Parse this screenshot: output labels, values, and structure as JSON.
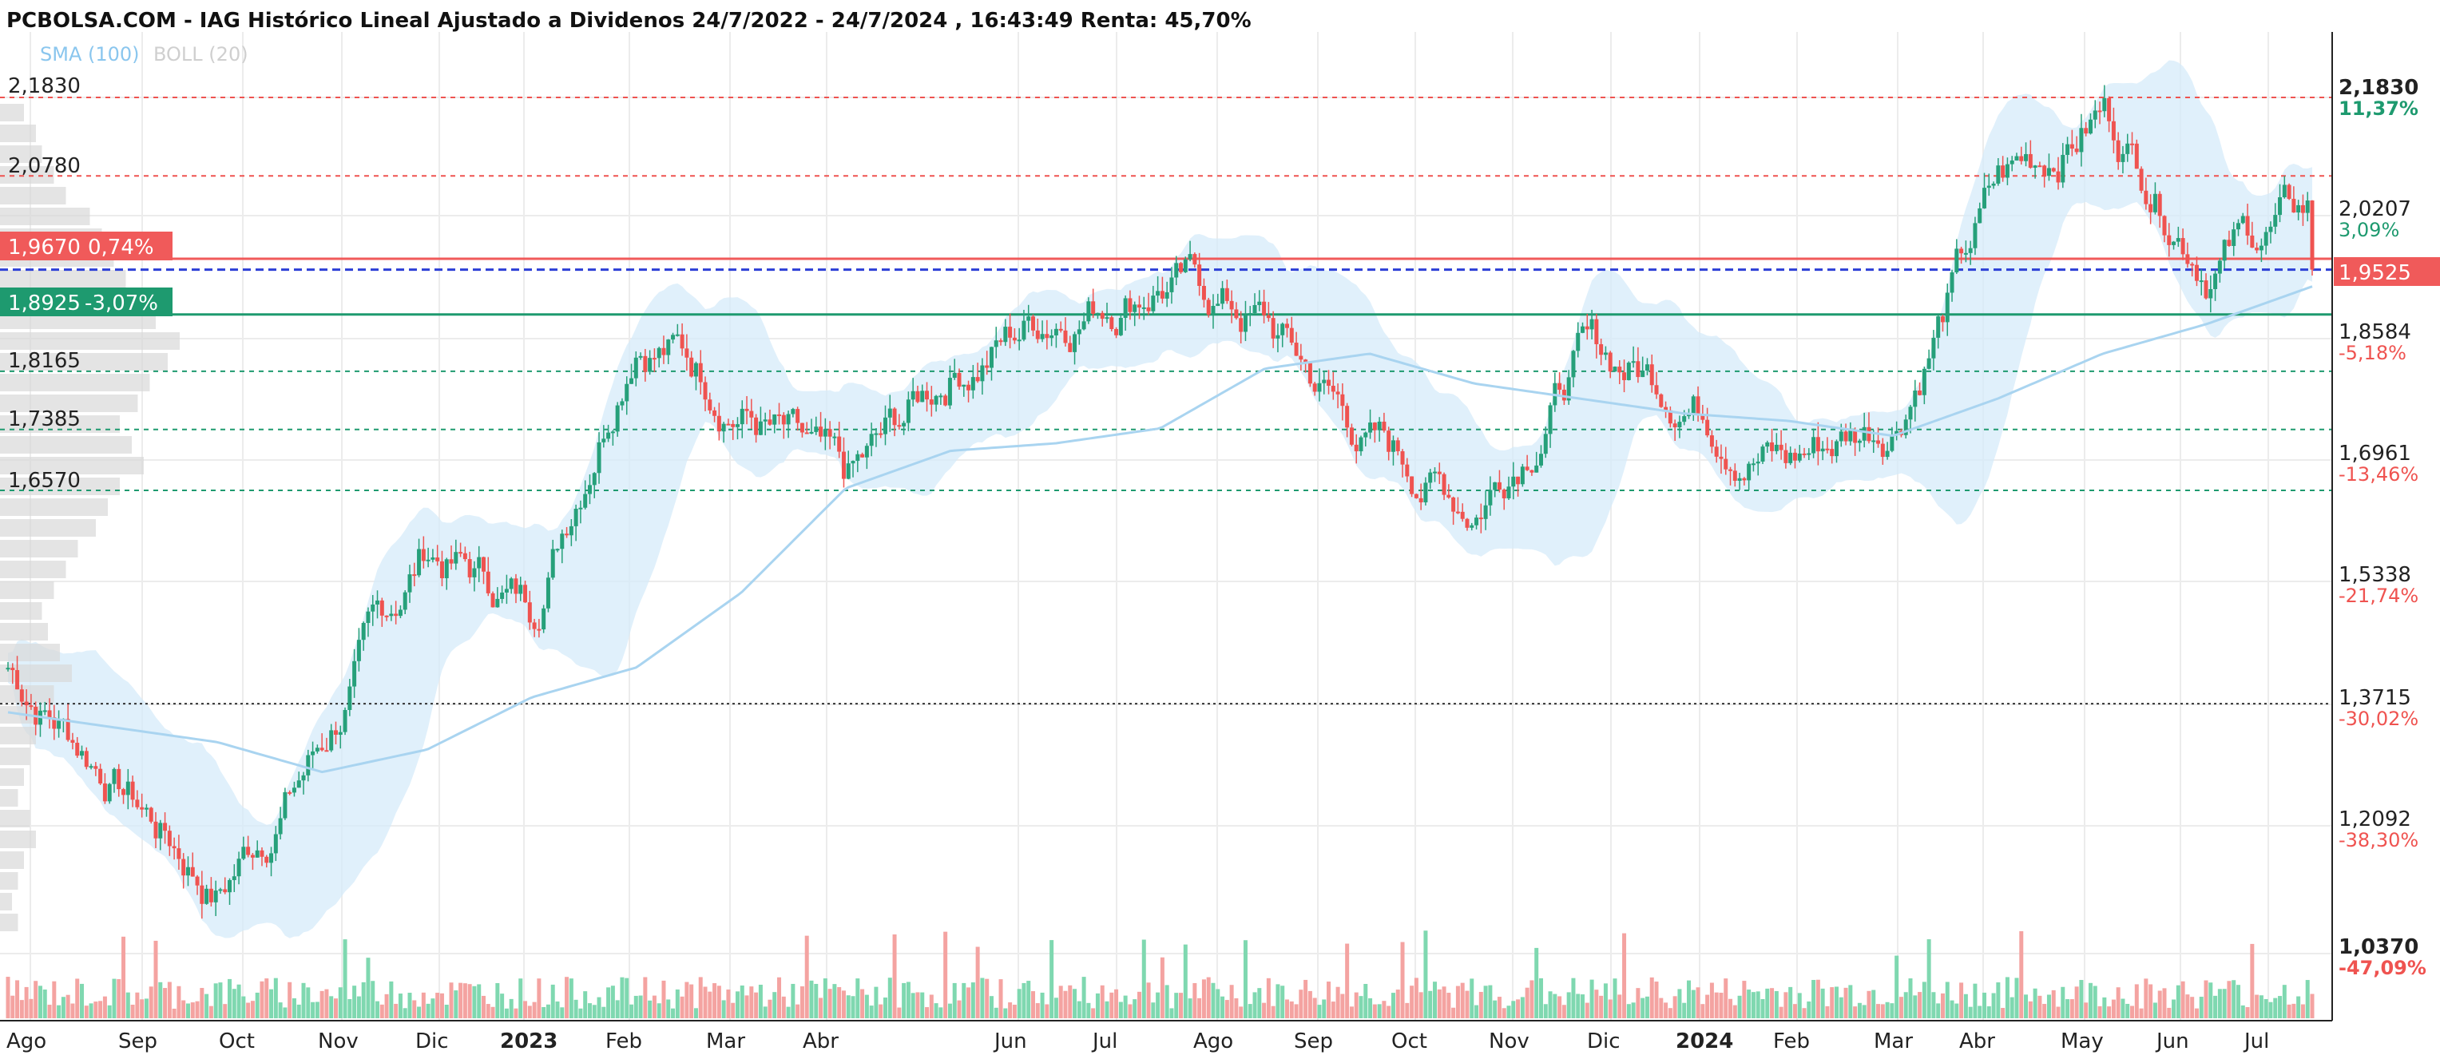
{
  "header": {
    "title": "PCBOLSA.COM - IAG Histórico Lineal Ajustado a Dividenos 24/7/2022 - 24/7/2024 , 16:43:49 Renta: 45,70%",
    "indicator_sma": "SMA (100)",
    "indicator_boll": "BOLL (20)"
  },
  "colors": {
    "up": "#26a07a",
    "down": "#ef5350",
    "sma": "#a9d4f0",
    "band": "#d6ebfa",
    "current": "#f05a5a",
    "support": "#1e9a6f",
    "dashed_blue": "#2c3fd6"
  },
  "left_labels": [
    {
      "price": "2,1830",
      "pct": ""
    },
    {
      "price": "2,0780",
      "pct": ""
    },
    {
      "price": "1,9670",
      "pct": "0,74%"
    },
    {
      "price": "1,8925",
      "pct": "-3,07%"
    },
    {
      "price": "1,8165",
      "pct": ""
    },
    {
      "price": "1,7385",
      "pct": ""
    },
    {
      "price": "1,6570",
      "pct": ""
    }
  ],
  "right_axis": [
    {
      "price": "2,1830",
      "pct": "11,37%"
    },
    {
      "price": "2,0207",
      "pct": "3,09%"
    },
    {
      "price": "1,9525",
      "pct": ""
    },
    {
      "price": "1,8584",
      "pct": "-5,18%"
    },
    {
      "price": "1,6961",
      "pct": "-13,46%"
    },
    {
      "price": "1,5338",
      "pct": "-21,74%"
    },
    {
      "price": "1,3715",
      "pct": "-30,02%"
    },
    {
      "price": "1,2092",
      "pct": "-38,30%"
    },
    {
      "price": "1,0370",
      "pct": "-47,09%"
    }
  ],
  "x_axis": [
    "Ago",
    "Sep",
    "Oct",
    "Nov",
    "Dic",
    "2023",
    "Feb",
    "Mar",
    "Abr",
    "Jun",
    "Jul",
    "Ago",
    "Sep",
    "Oct",
    "Nov",
    "Dic",
    "2024",
    "Feb",
    "Mar",
    "Abr",
    "May",
    "Jun",
    "Jul"
  ],
  "chart_data": {
    "type": "candlestick",
    "title": "PCBOLSA.COM - IAG Histórico Lineal Ajustado a Dividenos 24/7/2022 - 24/7/2024 , 16:43:49 Renta: 45,70%",
    "date_range": [
      "24/7/2022",
      "24/7/2024"
    ],
    "return": "45,70%",
    "last_price": 1.9525,
    "ylim": [
      1.037,
      2.183
    ],
    "horizontal_levels": [
      2.183,
      2.078,
      1.967,
      1.9525,
      1.8925,
      1.8165,
      1.7385,
      1.657,
      1.3715
    ],
    "close_series": {
      "x": [
        "Ago",
        "Sep",
        "Oct",
        "Nov",
        "Dic",
        "2023",
        "Feb",
        "Mar",
        "Abr",
        "Jun",
        "Jul",
        "Ago",
        "Sep",
        "Oct",
        "Nov",
        "Dic",
        "2024",
        "Feb",
        "Mar",
        "Abr",
        "May",
        "Jun",
        "Jul"
      ],
      "values": [
        1.42,
        1.28,
        1.12,
        1.32,
        1.58,
        1.5,
        1.9,
        1.78,
        1.64,
        1.82,
        1.9,
        1.95,
        1.88,
        1.72,
        1.64,
        1.84,
        1.8,
        1.7,
        1.76,
        2.06,
        2.17,
        1.98,
        2.03
      ]
    },
    "sma_100": [
      1.36,
      1.34,
      1.32,
      1.28,
      1.31,
      1.38,
      1.42,
      1.52,
      1.66,
      1.71,
      1.72,
      1.74,
      1.82,
      1.84,
      1.8,
      1.78,
      1.76,
      1.75,
      1.73,
      1.78,
      1.84,
      1.88,
      1.93
    ]
  }
}
